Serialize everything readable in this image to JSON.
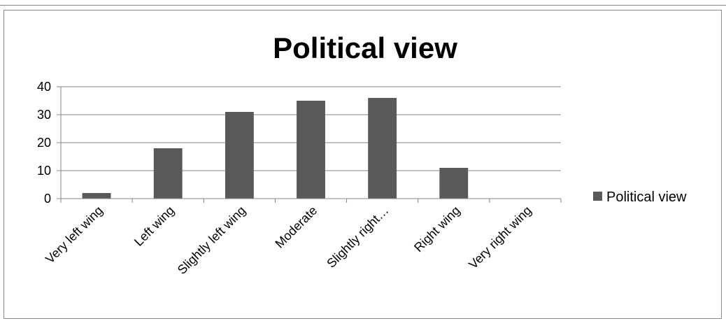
{
  "chart_data": {
    "type": "bar",
    "title": "Political view",
    "categories": [
      "Very left wing",
      "Left wing",
      "Slightly left wing",
      "Moderate",
      "Slightly right…",
      "Right wing",
      "Very right wing"
    ],
    "series": [
      {
        "name": "Political view",
        "values": [
          2,
          18,
          31,
          35,
          36,
          11,
          0
        ]
      }
    ],
    "xlabel": "",
    "ylabel": "",
    "ylim": [
      0,
      40
    ],
    "yticks": [
      0,
      10,
      20,
      30,
      40
    ],
    "grid": true,
    "legend": "right",
    "bar_color": "#595959",
    "axis_color": "#868686"
  }
}
